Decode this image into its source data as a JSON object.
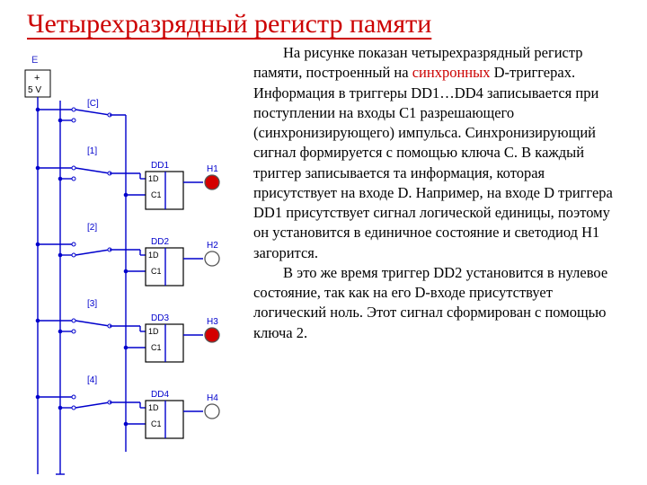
{
  "title": "Четырехразрядный регистр памяти",
  "colors": {
    "title": "#cc0000",
    "wire": "#0000cc",
    "dot": "#0000cc",
    "label": "#0000cc",
    "block_border": "#000000",
    "block_text": "#000000",
    "led_on": "#d40000",
    "led_off": "#ffffff",
    "led_stroke": "#555555",
    "bus_fill": "#ffffff"
  },
  "diagram": {
    "source_label_e": "E",
    "source_label_plus": "+",
    "source_label_v": "5 V",
    "clock_label": "[C]",
    "bits": [
      {
        "label": "[1]",
        "block": "DD1",
        "led": "H1",
        "led_on": true,
        "sw_up": true
      },
      {
        "label": "[2]",
        "block": "DD2",
        "led": "H2",
        "led_on": false,
        "sw_up": false
      },
      {
        "label": "[3]",
        "block": "DD3",
        "led": "H3",
        "led_on": true,
        "sw_up": true
      },
      {
        "label": "[4]",
        "block": "DD4",
        "led": "H4",
        "led_on": false,
        "sw_up": false
      }
    ],
    "port_d": "1D",
    "port_c": "C1"
  },
  "paragraph1_pre": "На рисунке показан четырехразрядный регистр памяти, построенный на ",
  "paragraph1_syn": "синхронных",
  "paragraph1_post": " D-триггерах. Информация в триггеры DD1…DD4 записывается при поступлении на входы C1 разрешающего (синхронизирующего) импульса. Синхронизирующий сигнал формируется с помощью ключа С. В каждый триггер записывается та информация, которая присутствует на входе D. Например, на входе D триггера DD1 присутствует сигнал логической единицы, поэтому он установится в единичное состояние и светодиод H1 загорится.",
  "paragraph2": "В это же время триггер DD2 установится в нулевое состояние, так как на его D-входе присутствует логический ноль. Этот сигнал сформирован с помощью ключа 2."
}
